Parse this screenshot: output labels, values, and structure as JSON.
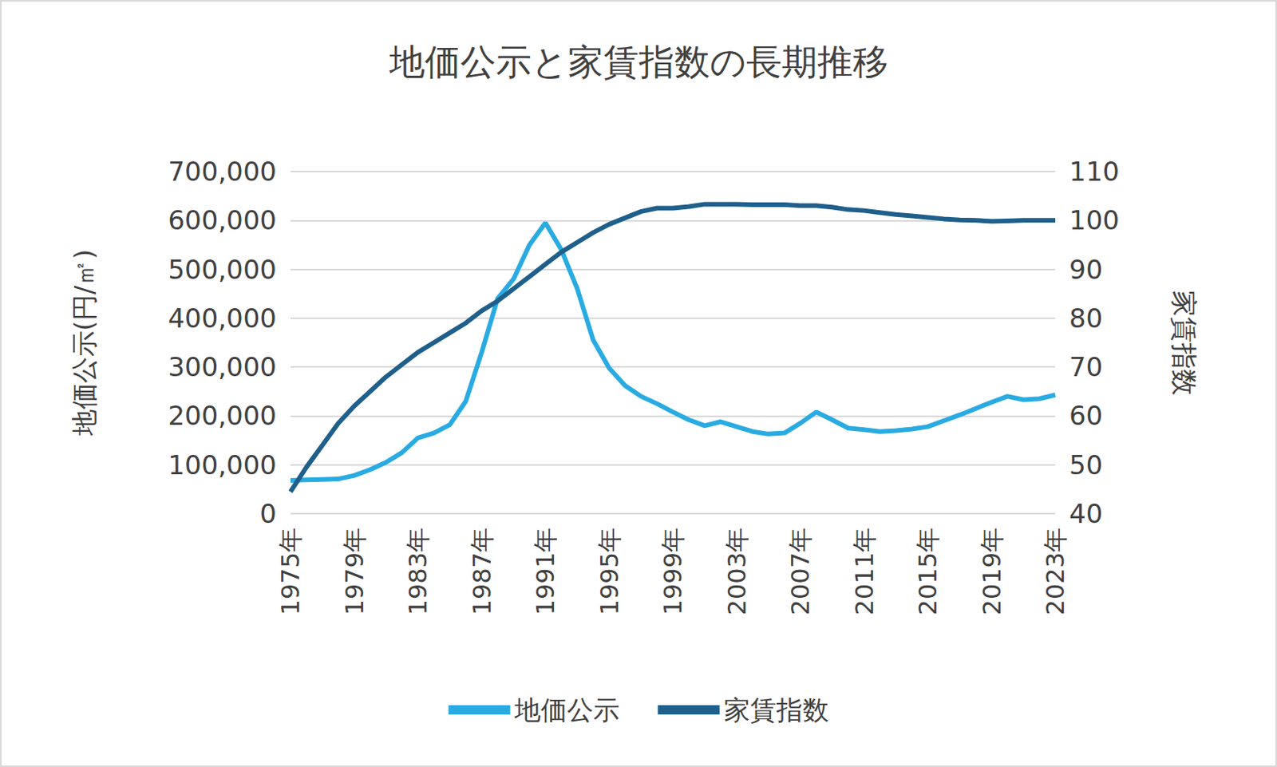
{
  "chart_data": {
    "type": "line",
    "title": "地価公示と家賃指数の長期推移",
    "y_label": "地価公示(円/㎡)",
    "y2_label": "家賃指数",
    "categories": [
      "1975年",
      null,
      null,
      null,
      "1979年",
      null,
      null,
      null,
      "1983年",
      null,
      null,
      null,
      "1987年",
      null,
      null,
      null,
      "1991年",
      null,
      null,
      null,
      "1995年",
      null,
      null,
      null,
      "1999年",
      null,
      null,
      null,
      "2003年",
      null,
      null,
      null,
      "2007年",
      null,
      null,
      null,
      "2011年",
      null,
      null,
      null,
      "2015年",
      null,
      null,
      null,
      "2019年",
      null,
      null,
      null,
      "2023年"
    ],
    "series": [
      {
        "name": "地価公示",
        "color": "#29abe2",
        "axis": "y",
        "values": [
          68000,
          69000,
          70000,
          71000,
          78000,
          90000,
          105000,
          125000,
          155000,
          165000,
          182000,
          230000,
          330000,
          440000,
          480000,
          550000,
          595000,
          540000,
          460000,
          355000,
          298000,
          262000,
          240000,
          225000,
          208000,
          192000,
          180000,
          188000,
          178000,
          168000,
          163000,
          165000,
          185000,
          208000,
          192000,
          175000,
          172000,
          168000,
          170000,
          173000,
          178000,
          190000,
          202000,
          215000,
          228000,
          240000,
          233000,
          235000,
          243000
        ]
      },
      {
        "name": "家賃指数",
        "color": "#1f5f8b",
        "axis": "y2",
        "values": [
          44.5,
          49.5,
          54,
          58.5,
          62,
          65,
          68,
          70.5,
          73,
          75,
          77,
          79,
          81.5,
          83.5,
          86,
          88.5,
          91,
          93.5,
          95.5,
          97.5,
          99.2,
          100.5,
          101.8,
          102.5,
          102.5,
          102.8,
          103.3,
          103.3,
          103.3,
          103.2,
          103.2,
          103.2,
          103,
          103,
          102.7,
          102.2,
          102,
          101.6,
          101.2,
          100.9,
          100.6,
          100.3,
          100.1,
          100,
          99.8,
          99.9,
          100,
          100,
          100
        ]
      }
    ],
    "ylim": [
      0,
      700000
    ],
    "yticks": [
      0,
      {
        "value": 100000,
        "label": "100,000"
      },
      {
        "value": 200000,
        "label": "200,000"
      },
      {
        "value": 300000,
        "label": "300,000"
      },
      {
        "value": 400000,
        "label": "400,000"
      },
      {
        "value": 500000,
        "label": "500,000"
      },
      {
        "value": 600000,
        "label": "600,000"
      },
      {
        "value": 700000,
        "label": "700,000"
      }
    ],
    "y2lim": [
      40,
      110
    ],
    "y2ticks": [
      40,
      50,
      60,
      70,
      80,
      90,
      100,
      110
    ],
    "grid": true,
    "legend": "bottom"
  }
}
